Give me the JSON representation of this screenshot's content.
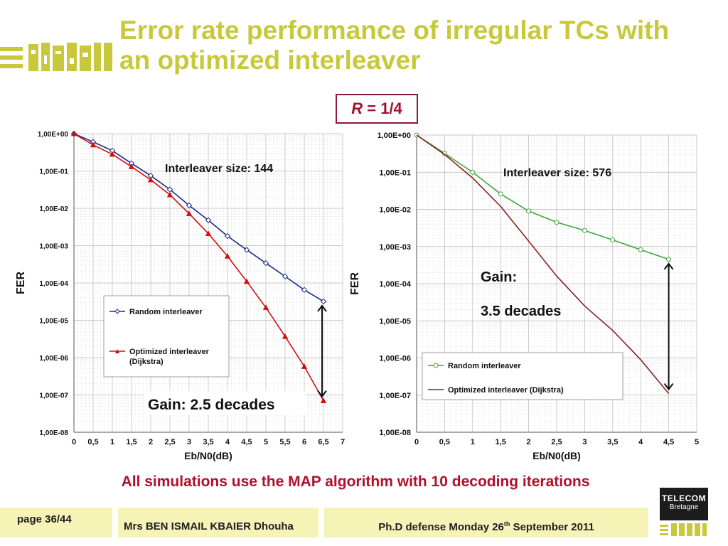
{
  "slide": {
    "title": "Error rate performance of irregular TCs with an optimized interleaver",
    "rate_symbol": "R",
    "rate_value": "= 1/4",
    "bottom_note": "All simulations use the MAP algorithm with 10 decoding iterations",
    "footer": {
      "page": "page 36/44",
      "author": "Mrs BEN ISMAIL KBAIER Dhouha",
      "defense_pre": "Ph.D defense Monday 26",
      "defense_sup": "th",
      "defense_post": " September 2011"
    },
    "logo": {
      "telecom": "TELECOM",
      "bretagne": "Bretagne"
    },
    "colors": {
      "title": "#c8c83a",
      "accent_red": "#b0102a",
      "footer_bg": "#f6f3b6"
    }
  },
  "chart_data": [
    {
      "type": "line",
      "yscale": "log",
      "ylabel": "FER",
      "xlabel": "Eb/N0(dB)",
      "xlim": [
        0,
        7
      ],
      "ylim": [
        1e-08,
        1
      ],
      "x_ticks": [
        "0",
        "0,5",
        "1",
        "1,5",
        "2",
        "2,5",
        "3",
        "3,5",
        "4",
        "4,5",
        "5",
        "5,5",
        "6",
        "6,5",
        "7"
      ],
      "y_ticks": [
        "1,00E+00",
        "1,00E-01",
        "1,00E-02",
        "1,00E-03",
        "1,00E-04",
        "1,00E-05",
        "1,00E-06",
        "1,00E-07",
        "1,00E-08"
      ],
      "annotation": "Interleaver size: 144",
      "gain": "Gain: 2.5 decades",
      "legend": [
        "Random interleaver",
        "Optimized interleaver (Dijkstra)"
      ],
      "legend_placement": "lower-left",
      "series": [
        {
          "name": "Random interleaver",
          "color": "#1a2a8a",
          "marker": "diamond",
          "x": [
            0,
            0.5,
            1,
            1.5,
            2,
            2.5,
            3,
            3.5,
            4,
            4.5,
            5,
            5.5,
            6,
            6.5
          ],
          "y": [
            1.0,
            0.6,
            0.35,
            0.16,
            0.075,
            0.032,
            0.012,
            0.0048,
            0.0018,
            0.00077,
            0.00034,
            0.00015,
            6.5e-05,
            3.2e-05
          ]
        },
        {
          "name": "Optimized interleaver (Dijkstra)",
          "color": "#cc1010",
          "marker": "triangle",
          "x": [
            0,
            0.5,
            1,
            1.5,
            2,
            2.5,
            3,
            3.5,
            4,
            4.5,
            5,
            5.5,
            6,
            6.5
          ],
          "y": [
            1.0,
            0.5,
            0.28,
            0.13,
            0.058,
            0.023,
            0.0072,
            0.0021,
            0.00052,
            0.00011,
            2.2e-05,
            3.7e-06,
            5.8e-07,
            7e-08
          ]
        }
      ]
    },
    {
      "type": "line",
      "yscale": "log",
      "ylabel": "FER",
      "xlabel": "Eb/N0(dB)",
      "xlim": [
        0,
        5
      ],
      "ylim": [
        1e-08,
        1
      ],
      "x_ticks": [
        "0",
        "0,5",
        "1",
        "1,5",
        "2",
        "2,5",
        "3",
        "3,5",
        "4",
        "4,5",
        "5"
      ],
      "y_ticks": [
        "1,00E+00",
        "1,00E-01",
        "1,00E-02",
        "1,00E-03",
        "1,00E-04",
        "1,00E-05",
        "1,00E-06",
        "1,00E-07",
        "1,00E-08"
      ],
      "annotation": "Interleaver size: 576",
      "gain_line1": "Gain:",
      "gain_line2": "3.5 decades",
      "legend": [
        "Random interleaver",
        "Optimized  interleaver (Dijkstra)"
      ],
      "legend_placement": "lower-left",
      "series": [
        {
          "name": "Random interleaver",
          "color": "#3aa83a",
          "marker": "circle",
          "x": [
            0,
            0.5,
            1,
            1.5,
            2,
            2.5,
            3,
            3.5,
            4,
            4.5
          ],
          "y": [
            1.0,
            0.32,
            0.1,
            0.026,
            0.009,
            0.0045,
            0.0027,
            0.0015,
            0.00082,
            0.00045
          ]
        },
        {
          "name": "Optimized  interleaver (Dijkstra)",
          "color": "#8b2020",
          "marker": "none",
          "x": [
            0,
            0.5,
            1,
            1.5,
            2,
            2.5,
            3,
            3.5,
            4,
            4.5
          ],
          "y": [
            1.0,
            0.3,
            0.07,
            0.012,
            0.0014,
            0.00016,
            2.5e-05,
            5.5e-06,
            9e-07,
            1.1e-07
          ]
        }
      ]
    }
  ]
}
